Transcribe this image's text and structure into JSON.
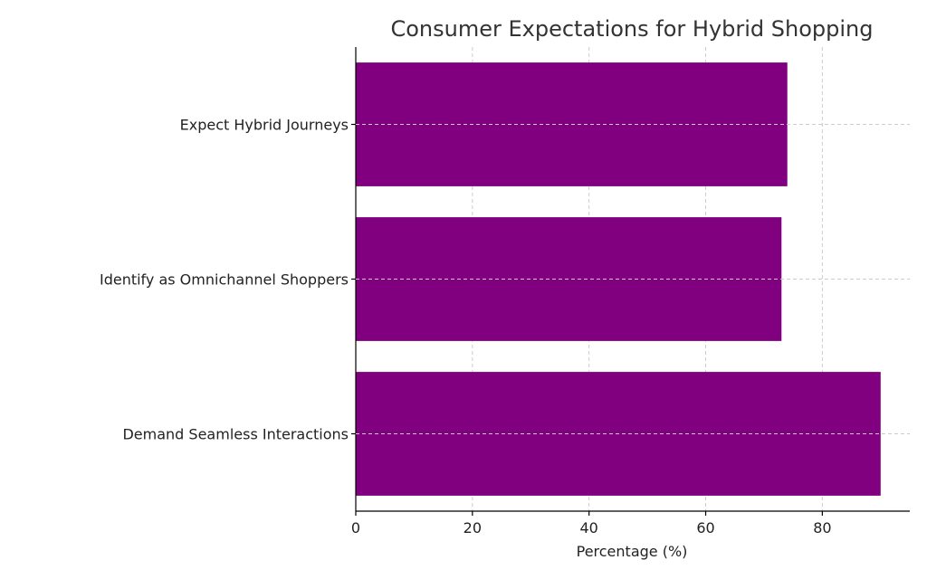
{
  "chart_data": {
    "type": "bar",
    "orientation": "horizontal",
    "title": "Consumer Expectations for Hybrid Shopping",
    "xlabel": "Percentage (%)",
    "ylabel": "",
    "categories": [
      "Expect Hybrid Journeys",
      "Identify as Omnichannel Shoppers",
      "Demand Seamless Interactions"
    ],
    "values": [
      74,
      73,
      90
    ],
    "xlim": [
      0,
      95
    ],
    "xticks": [
      0,
      20,
      40,
      60,
      80
    ],
    "grid": true,
    "bar_color": "#800080"
  }
}
